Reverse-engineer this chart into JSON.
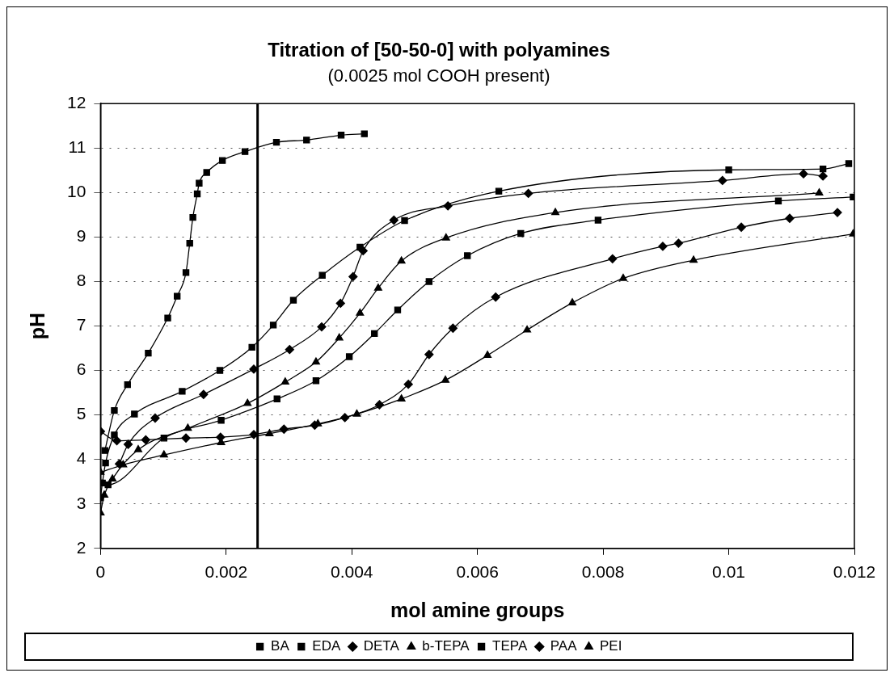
{
  "chart_data": {
    "type": "line",
    "title": "Titration of [50-50-0] with polyamines",
    "subtitle": "(0.0025 mol COOH present)",
    "xlabel": "mol amine groups",
    "ylabel": "pH",
    "xlim": [
      0,
      0.012
    ],
    "xticks": [
      0,
      0.002,
      0.004,
      0.006,
      0.008,
      0.01,
      0.012
    ],
    "ylim": [
      2,
      12
    ],
    "yticks": [
      2,
      3,
      4,
      5,
      6,
      7,
      8,
      9,
      10,
      11,
      12
    ],
    "grid": "y",
    "legend": "bottom",
    "line_style": "solid",
    "ref_lines": [
      {
        "axis": "x",
        "value": 0.0025,
        "color": "#000000"
      }
    ],
    "series": [
      {
        "name": "BA",
        "color": "#000000",
        "marker": "square",
        "x": [
          7e-05,
          0.00022,
          0.00043,
          0.00076,
          0.00107,
          0.00122,
          0.00136,
          0.00142,
          0.00147,
          0.00154,
          0.00157,
          0.00169,
          0.00194,
          0.0023,
          0.0028,
          0.00328,
          0.00383,
          0.0042
        ],
        "values": [
          4.2,
          5.1,
          5.68,
          6.39,
          7.18,
          7.67,
          8.2,
          8.86,
          9.44,
          9.97,
          10.21,
          10.45,
          10.72,
          10.92,
          11.13,
          11.18,
          11.29,
          11.32
        ]
      },
      {
        "name": "EDA",
        "color": "#000000",
        "marker": "square",
        "x": [
          0,
          3e-05,
          8e-05,
          0.00022,
          0.00054,
          0.0013,
          0.0019,
          0.00241,
          0.00275,
          0.00307,
          0.00353,
          0.00413,
          0.00484,
          0.00634,
          0.01,
          0.0115,
          0.01191
        ],
        "values": [
          3.14,
          3.47,
          3.92,
          4.55,
          5.02,
          5.53,
          6.0,
          6.52,
          7.02,
          7.58,
          8.14,
          8.77,
          9.37,
          10.03,
          10.51,
          10.53,
          10.65
        ]
      },
      {
        "name": "DETA",
        "color": "#000000",
        "marker": "diamond",
        "x": [
          0.0003,
          0.00044,
          0.00087,
          0.00164,
          0.00244,
          0.00301,
          0.00352,
          0.00382,
          0.00402,
          0.00418,
          0.00467,
          0.00553,
          0.00681,
          0.0099,
          0.01119,
          0.0115
        ],
        "values": [
          3.9,
          4.34,
          4.93,
          5.46,
          6.03,
          6.47,
          6.98,
          7.51,
          8.11,
          8.69,
          9.38,
          9.7,
          9.98,
          10.27,
          10.42,
          10.37
        ]
      },
      {
        "name": "b-TEPA",
        "color": "#000000",
        "marker": "triangle",
        "x": [
          0,
          6e-05,
          0.00019,
          0.0006,
          0.00139,
          0.00234,
          0.00294,
          0.00343,
          0.0038,
          0.00413,
          0.00442,
          0.00479,
          0.0055,
          0.00724,
          0.01144
        ],
        "values": [
          2.8,
          3.2,
          3.56,
          4.22,
          4.7,
          5.26,
          5.74,
          6.19,
          6.73,
          7.29,
          7.85,
          8.46,
          8.98,
          9.55,
          9.99
        ]
      },
      {
        "name": "TEPA",
        "color": "#000000",
        "marker": "square",
        "x": [
          0,
          0.00012,
          0.00101,
          0.00192,
          0.00281,
          0.00343,
          0.00396,
          0.00436,
          0.00473,
          0.00523,
          0.00584,
          0.00669,
          0.00792,
          0.01079,
          0.01198
        ],
        "values": [
          3.47,
          3.43,
          4.48,
          4.88,
          5.36,
          5.77,
          6.31,
          6.83,
          7.36,
          8.0,
          8.58,
          9.08,
          9.38,
          9.81,
          9.9
        ]
      },
      {
        "name": "PAA",
        "color": "#000000",
        "marker": "diamond",
        "x": [
          0,
          0.00026,
          0.00072,
          0.00136,
          0.00191,
          0.00244,
          0.00292,
          0.00341,
          0.00389,
          0.00444,
          0.0049,
          0.00523,
          0.00561,
          0.00629,
          0.00815,
          0.00895,
          0.0092,
          0.0102,
          0.01097,
          0.01173
        ],
        "values": [
          4.63,
          4.42,
          4.44,
          4.48,
          4.5,
          4.56,
          4.68,
          4.77,
          4.94,
          5.23,
          5.69,
          6.36,
          6.95,
          7.65,
          8.51,
          8.79,
          8.86,
          9.22,
          9.42,
          9.55
        ]
      },
      {
        "name": "PEI",
        "color": "#000000",
        "marker": "triangle",
        "x": [
          0,
          0.00036,
          0.00101,
          0.00192,
          0.00269,
          0.00346,
          0.00408,
          0.00479,
          0.00549,
          0.00616,
          0.00679,
          0.00751,
          0.00832,
          0.00944,
          0.01198
        ],
        "values": [
          3.71,
          3.88,
          4.1,
          4.38,
          4.58,
          4.8,
          5.02,
          5.36,
          5.78,
          6.34,
          6.91,
          7.52,
          8.07,
          8.48,
          9.07
        ]
      }
    ]
  }
}
